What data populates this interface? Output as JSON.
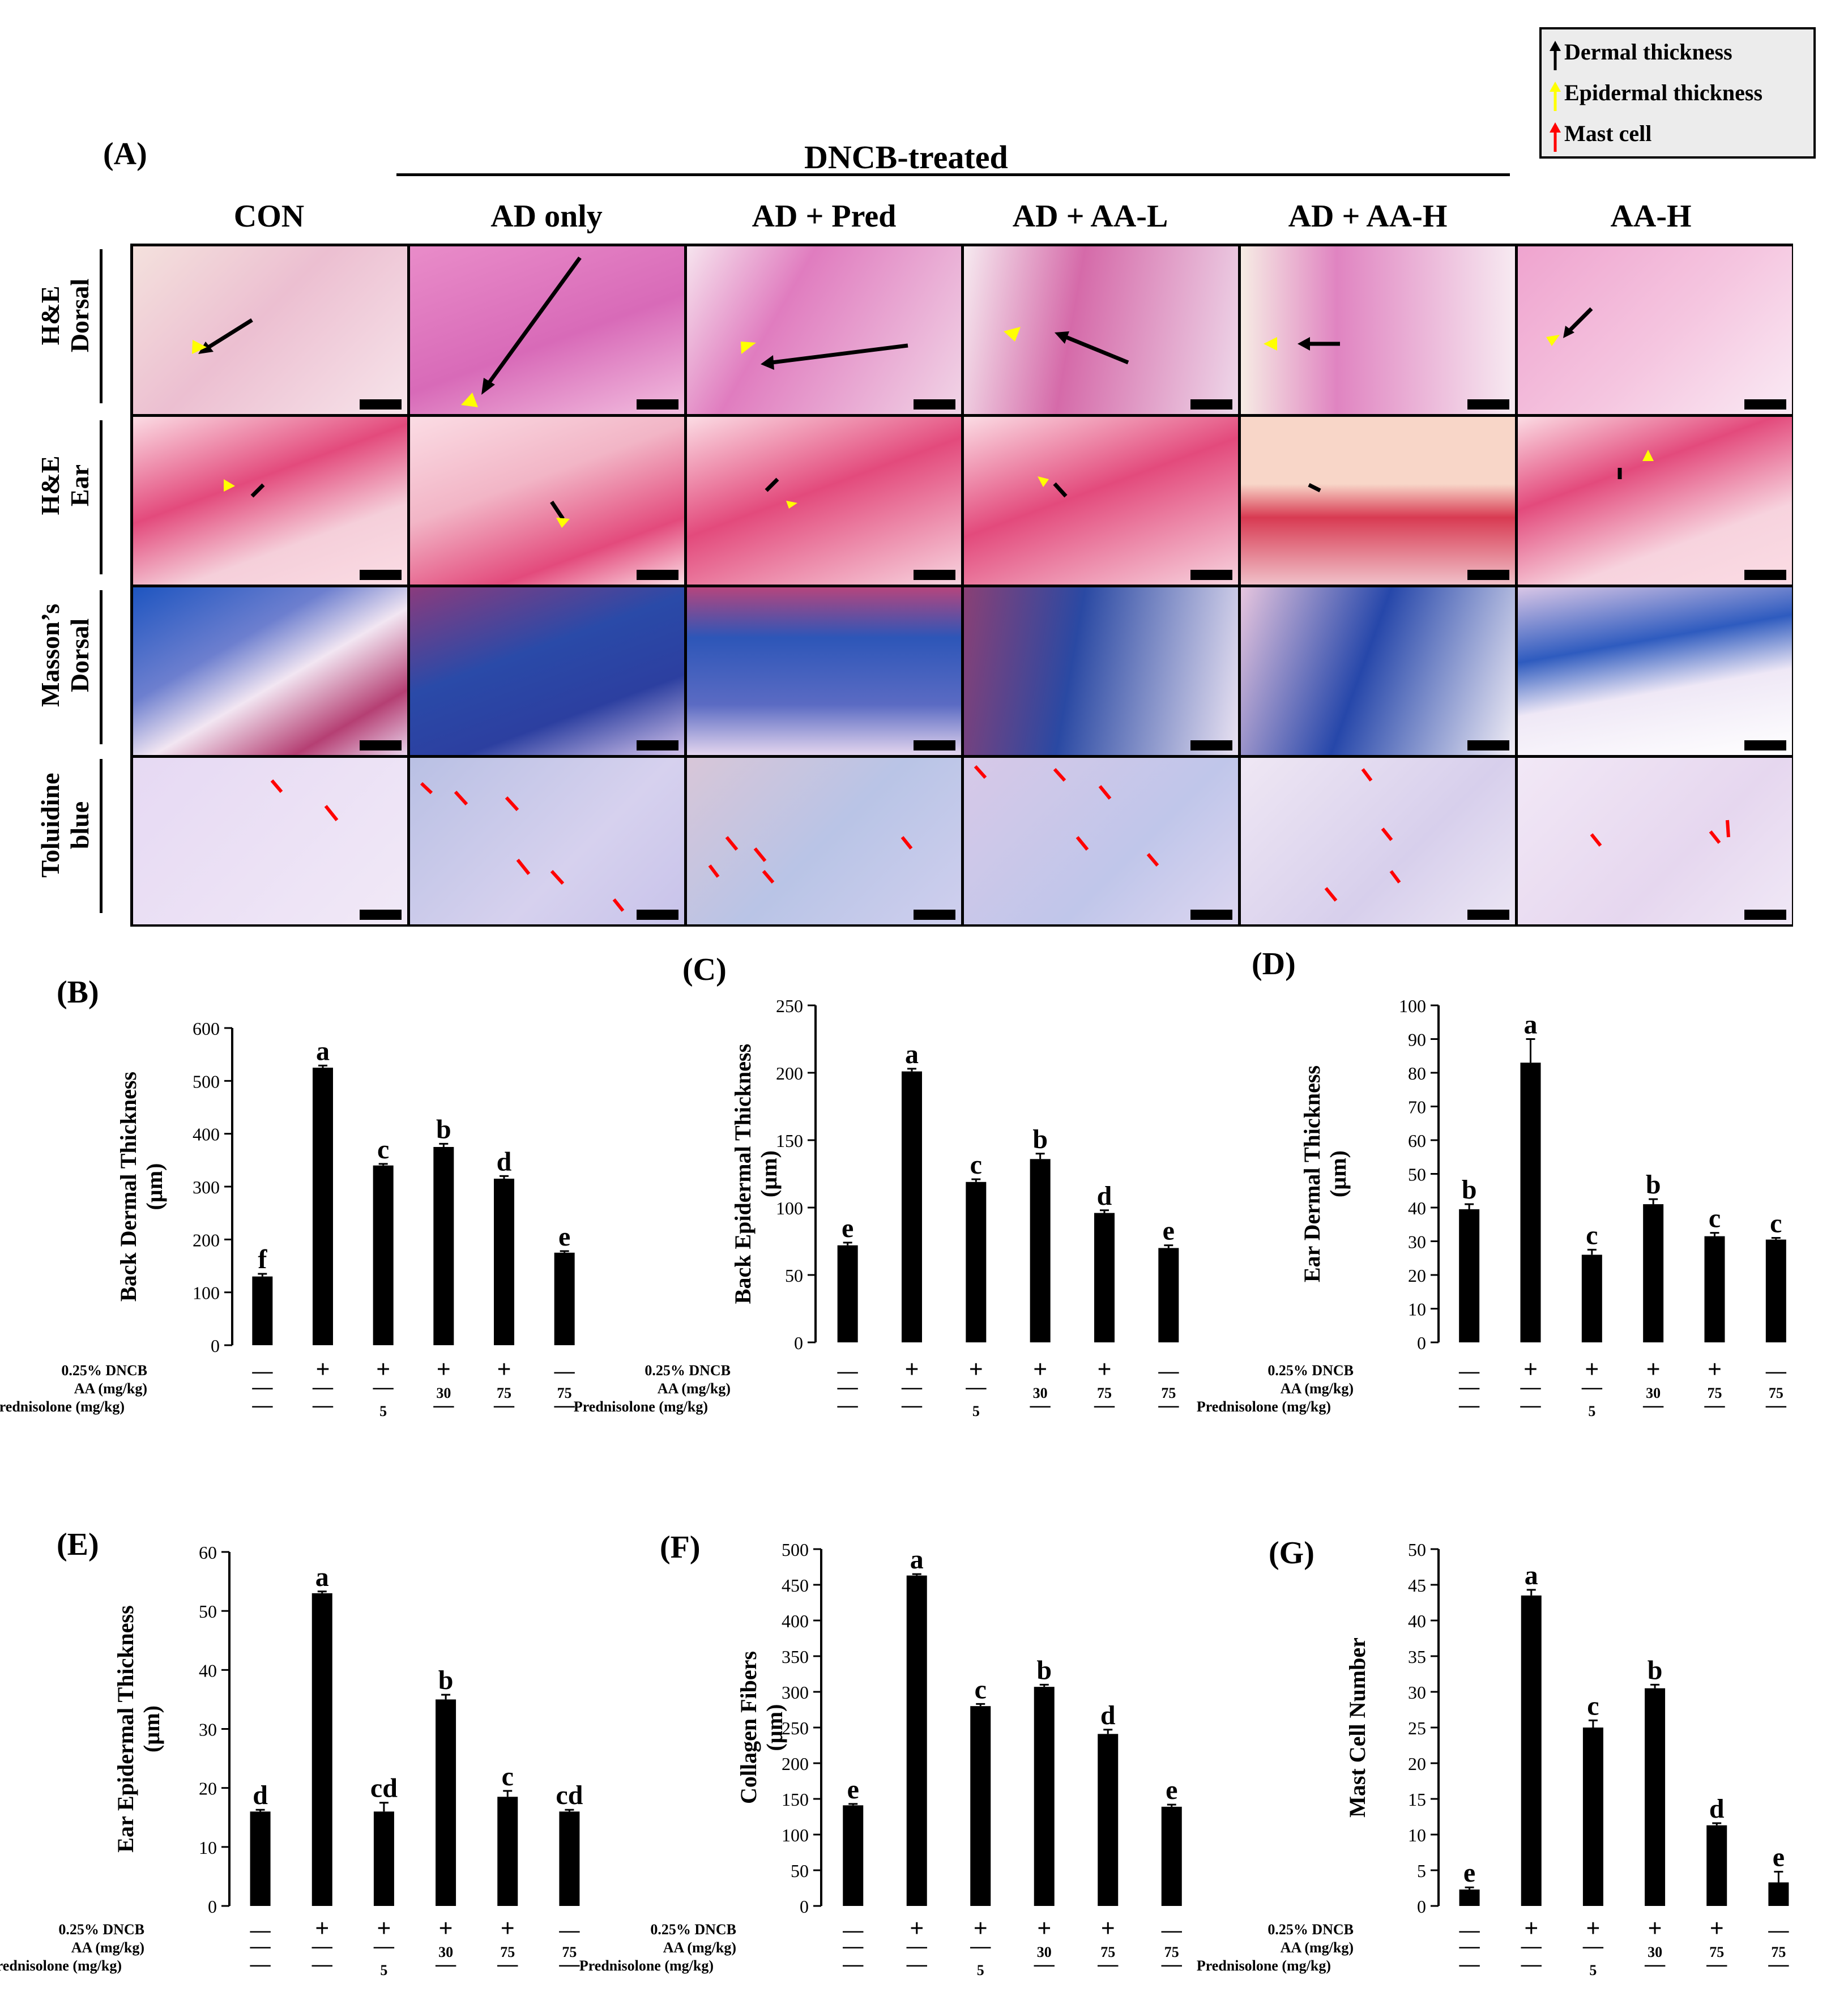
{
  "legend": {
    "items": [
      {
        "label": "Dermal thickness",
        "color": "#000000"
      },
      {
        "label": "Epidermal thickness",
        "color": "#ffff00"
      },
      {
        "label": "Mast cell",
        "color": "#ff0000"
      }
    ]
  },
  "panelA": {
    "letter": "(A)",
    "group_header": "DNCB-treated",
    "columns": [
      "CON",
      "AD only",
      "AD + Pred",
      "AD + AA-L",
      "AD + AA-H",
      "AA-H"
    ],
    "rows": [
      {
        "line1": "H&E",
        "line2": "Dorsal"
      },
      {
        "line1": "H&E",
        "line2": "Ear"
      },
      {
        "line1": "Masson’s",
        "line2": "Dorsal"
      },
      {
        "line1": "Toluidine",
        "line2": "blue"
      }
    ]
  },
  "conditions": {
    "row_labels": [
      "0.25% DNCB",
      "AA (mg/kg)",
      "Prednisolone (mg/kg)"
    ],
    "dncb": [
      "—",
      "+",
      "+",
      "+",
      "+",
      "—"
    ],
    "aa": [
      "—",
      "—",
      "—",
      "30",
      "75",
      "75"
    ],
    "pred": [
      "—",
      "—",
      "5",
      "—",
      "—",
      "—"
    ]
  },
  "chart_data": [
    {
      "panel": "(B)",
      "type": "bar",
      "ylabel": "Back Dermal Thickness",
      "ylabel_unit": "(µm)",
      "ylim": [
        0,
        600
      ],
      "yticks": [
        0,
        100,
        200,
        300,
        400,
        500,
        600
      ],
      "values": [
        130,
        525,
        340,
        375,
        315,
        175
      ],
      "errors": [
        5,
        4,
        3,
        6,
        5,
        3
      ],
      "letters": [
        "f",
        "a",
        "c",
        "b",
        "d",
        "e"
      ]
    },
    {
      "panel": "(C)",
      "type": "bar",
      "ylabel": "Back Epidermal Thickness",
      "ylabel_unit": "(µm)",
      "ylim": [
        0,
        250
      ],
      "yticks": [
        0,
        50,
        100,
        150,
        200,
        250
      ],
      "values": [
        72,
        201,
        119,
        136,
        96,
        70
      ],
      "errors": [
        2,
        2,
        2,
        4,
        2,
        2
      ],
      "letters": [
        "e",
        "a",
        "c",
        "b",
        "d",
        "e"
      ]
    },
    {
      "panel": "(D)",
      "type": "bar",
      "ylabel": "Ear Dermal Thickness",
      "ylabel_unit": "(µm)",
      "ylim": [
        0,
        100
      ],
      "yticks": [
        0,
        10,
        20,
        30,
        40,
        50,
        60,
        70,
        80,
        90,
        100
      ],
      "values": [
        39.5,
        83,
        26,
        41,
        31.5,
        30.5
      ],
      "errors": [
        1.5,
        7,
        1.5,
        1.5,
        1,
        0.5
      ],
      "letters": [
        "b",
        "a",
        "c",
        "b",
        "c",
        "c"
      ]
    },
    {
      "panel": "(E)",
      "type": "bar",
      "ylabel": "Ear Epidermal Thickness",
      "ylabel_unit": "(µm)",
      "ylim": [
        0,
        60
      ],
      "yticks": [
        0,
        10,
        20,
        30,
        40,
        50,
        60
      ],
      "values": [
        16,
        53,
        16,
        35,
        18.5,
        16
      ],
      "errors": [
        0.3,
        0.3,
        1.5,
        0.8,
        1,
        0.3
      ],
      "letters": [
        "d",
        "a",
        "cd",
        "b",
        "c",
        "cd"
      ]
    },
    {
      "panel": "(F)",
      "type": "bar",
      "ylabel": "Collagen Fibers",
      "ylabel_unit": "(µm)",
      "ylim": [
        0,
        500
      ],
      "yticks": [
        0,
        50,
        100,
        150,
        200,
        250,
        300,
        350,
        400,
        450,
        500
      ],
      "values": [
        141,
        463,
        280,
        307,
        241,
        139
      ],
      "errors": [
        2,
        2,
        3,
        3,
        6,
        3
      ],
      "letters": [
        "e",
        "a",
        "c",
        "b",
        "d",
        "e"
      ]
    },
    {
      "panel": "(G)",
      "type": "bar",
      "ylabel": "Mast Cell Number",
      "ylabel_unit": "",
      "ylim": [
        0,
        50
      ],
      "yticks": [
        0,
        5,
        10,
        15,
        20,
        25,
        30,
        35,
        40,
        45,
        50
      ],
      "values": [
        2.3,
        43.5,
        25,
        30.5,
        11.3,
        3.3
      ],
      "errors": [
        0.3,
        0.8,
        1,
        0.5,
        0.3,
        1.5
      ],
      "letters": [
        "e",
        "a",
        "c",
        "b",
        "d",
        "e"
      ]
    }
  ]
}
